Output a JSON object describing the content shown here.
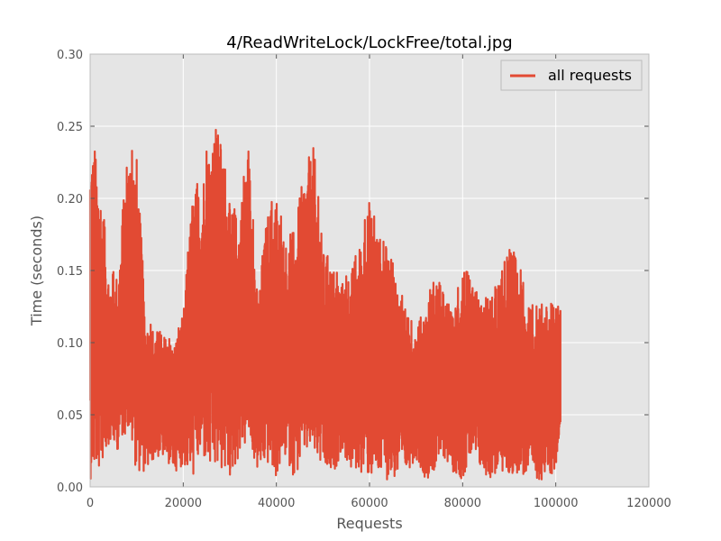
{
  "chart_data": {
    "type": "line",
    "title": "4/ReadWriteLock/LockFree/total.jpg",
    "xlabel": "Requests",
    "ylabel": "Time (seconds)",
    "xlim": [
      0,
      120000
    ],
    "ylim": [
      0,
      0.3
    ],
    "xticks": [
      0,
      20000,
      40000,
      60000,
      80000,
      100000,
      120000
    ],
    "xtick_labels": [
      "0",
      "20000",
      "40000",
      "60000",
      "80000",
      "100000",
      "120000"
    ],
    "yticks": [
      0,
      0.05,
      0.1,
      0.15,
      0.2,
      0.25,
      0.3
    ],
    "ytick_labels": [
      "0.00",
      "0.05",
      "0.10",
      "0.15",
      "0.20",
      "0.25",
      "0.30"
    ],
    "grid": true,
    "legend": {
      "placement": "top-right"
    },
    "series": [
      {
        "name": "all requests",
        "color": "#e24a33",
        "x": [
          0,
          2000,
          4000,
          6000,
          8000,
          10000,
          12000,
          14000,
          16000,
          18000,
          20000,
          22000,
          24000,
          26000,
          28000,
          30000,
          32000,
          34000,
          36000,
          38000,
          40000,
          42000,
          44000,
          46000,
          48000,
          50000,
          52000,
          54000,
          56000,
          58000,
          60000,
          62000,
          64000,
          66000,
          68000,
          70000,
          72000,
          74000,
          76000,
          78000,
          80000,
          82000,
          84000,
          86000,
          88000,
          90000,
          92000,
          94000,
          96000,
          98000,
          100000,
          101000
        ],
        "low": [
          0.005,
          0.01,
          0.03,
          0.025,
          0.04,
          0.01,
          0.01,
          0.02,
          0.02,
          0.01,
          0.015,
          0.005,
          0.02,
          0.005,
          0.01,
          0.005,
          0.02,
          0.03,
          0.01,
          0.015,
          0.005,
          0.02,
          0.005,
          0.02,
          0.02,
          0.01,
          0.005,
          0.025,
          0.01,
          0.01,
          0.005,
          0.005,
          0.005,
          0.005,
          0.01,
          0.02,
          0.005,
          0.01,
          0.02,
          0.01,
          0.005,
          0.02,
          0.01,
          0.005,
          0.01,
          0.005,
          0.01,
          0.005,
          0.005,
          0.005,
          0.01,
          0.045
        ],
        "high": [
          0.245,
          0.22,
          0.15,
          0.148,
          0.236,
          0.23,
          0.115,
          0.11,
          0.105,
          0.1,
          0.12,
          0.205,
          0.215,
          0.25,
          0.245,
          0.195,
          0.19,
          0.24,
          0.13,
          0.19,
          0.205,
          0.17,
          0.18,
          0.22,
          0.237,
          0.165,
          0.155,
          0.142,
          0.15,
          0.17,
          0.2,
          0.175,
          0.165,
          0.145,
          0.12,
          0.11,
          0.125,
          0.148,
          0.135,
          0.118,
          0.158,
          0.14,
          0.13,
          0.132,
          0.145,
          0.167,
          0.158,
          0.125,
          0.127,
          0.126,
          0.128,
          0.122
        ]
      }
    ]
  }
}
